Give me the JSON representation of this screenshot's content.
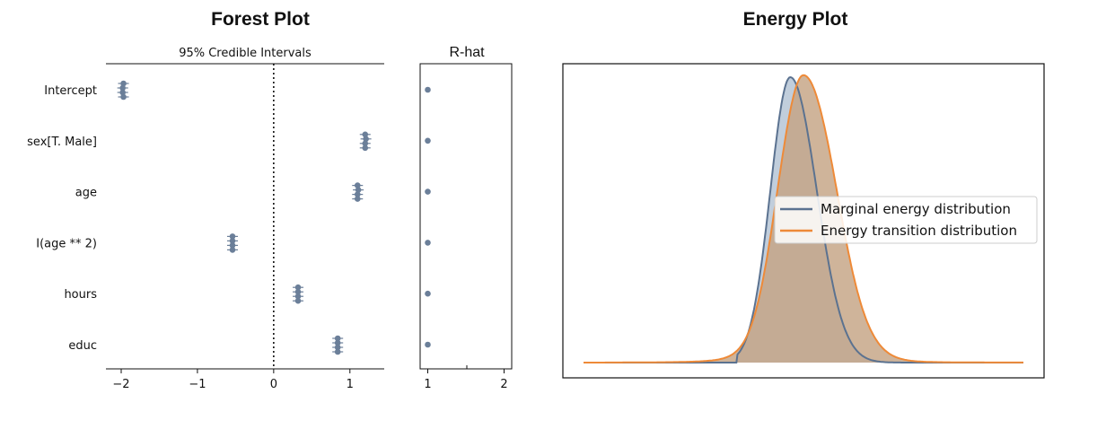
{
  "forest": {
    "title": "Forest Plot",
    "ci_label": "95% Credible Intervals",
    "rhat_label": "R-hat",
    "color": "#6b7f99",
    "xlim": [
      -2.2,
      1.45
    ],
    "xticks": [
      -2,
      -1,
      0,
      1
    ],
    "xtick_labels": [
      "−2",
      "−1",
      "0",
      "1"
    ],
    "rhat_xlim": [
      0.9,
      2.1
    ],
    "rhat_xticks": [
      1,
      2
    ],
    "rhat_xtick_labels": [
      "1",
      "2"
    ]
  },
  "energy": {
    "title": "Energy Plot",
    "marginal_color": "#5b7290",
    "marginal_fill": "#b6c6d6",
    "transition_color": "#ee8a38",
    "transition_fill": "#c5a484",
    "legend": [
      "Marginal energy distribution",
      "Energy transition distribution"
    ]
  },
  "chart_data": [
    {
      "type": "scatter",
      "title": "Forest Plot",
      "subtitle": "95% Credible Intervals",
      "xlim": [
        -2.2,
        1.45
      ],
      "reference_line": 0,
      "categories": [
        "Intercept",
        "sex[T. Male]",
        "age",
        "I(age ** 2)",
        "hours",
        "educ"
      ],
      "chains": [
        [
          -1.97,
          -1.98,
          -1.98,
          -1.97
        ],
        [
          1.2,
          1.21,
          1.2,
          1.2
        ],
        [
          1.1,
          1.11,
          1.1,
          1.1
        ],
        [
          -0.54,
          -0.54,
          -0.54,
          -0.54
        ],
        [
          0.32,
          0.32,
          0.32,
          0.32
        ],
        [
          0.84,
          0.84,
          0.84,
          0.84
        ]
      ]
    },
    {
      "type": "scatter",
      "title": "R-hat",
      "xlim": [
        0.9,
        2.1
      ],
      "categories": [
        "Intercept",
        "sex[T. Male]",
        "age",
        "I(age ** 2)",
        "hours",
        "educ"
      ],
      "values": [
        1.0,
        1.0,
        1.0,
        1.0,
        1.0,
        1.0
      ]
    },
    {
      "type": "area",
      "title": "Energy Plot",
      "xlim": [
        -5,
        5
      ],
      "grid": false,
      "legend_position": "center-right",
      "series": [
        {
          "name": "Marginal energy distribution",
          "peak_x": -0.3,
          "peak_density": 1.0,
          "left_support": -1.5
        },
        {
          "name": "Energy transition distribution",
          "peak_x": 0.0,
          "peak_density": 0.95,
          "left_support": -4.5
        }
      ]
    }
  ]
}
